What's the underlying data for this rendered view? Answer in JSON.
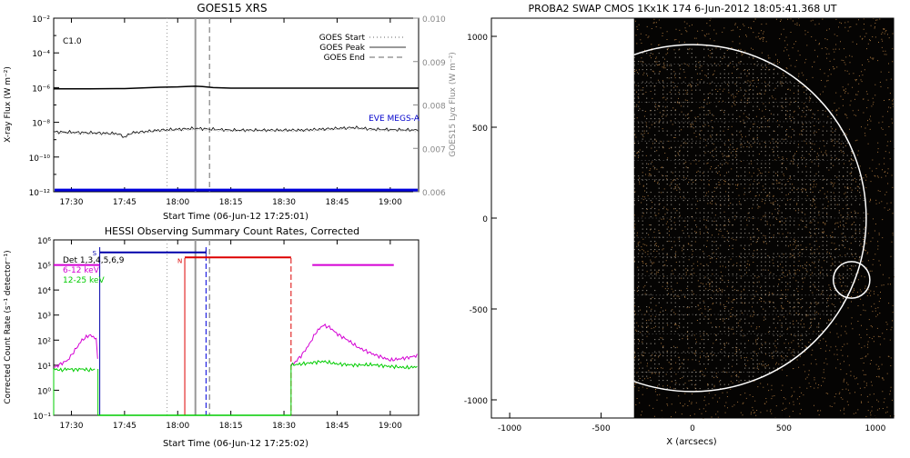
{
  "chart_data": [
    {
      "type": "line",
      "title": "GOES15 XRS",
      "xlabel": "Start Time (06-Jun-12 17:25:01)",
      "ylabel": "X-ray Flux (W m⁻²)",
      "ylabel2": "GOES15 Lyα Flux (W m⁻²)",
      "annotation": "C1.0",
      "xrange_minutes": [
        0,
        103
      ],
      "x_tick_labels": [
        "17:30",
        "17:45",
        "18:00",
        "18:15",
        "18:30",
        "18:45",
        "19:00"
      ],
      "x_tick_minutes": [
        5,
        20,
        35,
        50,
        65,
        80,
        95
      ],
      "ylim_log10": [
        -12,
        -2
      ],
      "y_ticks_log10": [
        -2,
        -4,
        -6,
        -8,
        -10,
        -12
      ],
      "y2lim": [
        0.006,
        0.01
      ],
      "y2_ticks": [
        "0.006",
        "0.007",
        "0.008",
        "0.009",
        "0.010"
      ],
      "y2_tick_values": [
        0.006,
        0.007,
        0.008,
        0.009,
        0.01
      ],
      "legend": [
        {
          "name": "GOES Start",
          "style": "dotted"
        },
        {
          "name": "GOES Peak",
          "style": "solid"
        },
        {
          "name": "GOES End",
          "style": "dashed"
        }
      ],
      "series_label": "EVE MEGS-A",
      "event_lines_minutes": {
        "start": 32,
        "peak": 40,
        "end": 44
      },
      "long_channel": {
        "x": [
          0,
          10,
          20,
          25,
          30,
          35,
          38,
          40,
          42,
          45,
          50,
          55,
          60,
          70,
          80,
          90,
          103
        ],
        "log10_flux": [
          -6.07,
          -6.07,
          -6.06,
          -6.02,
          -5.98,
          -5.96,
          -5.93,
          -5.92,
          -5.94,
          -6.0,
          -6.03,
          -6.03,
          -6.03,
          -6.03,
          -6.03,
          -6.03,
          -6.03
        ]
      },
      "short_channel": {
        "x": [
          0,
          10,
          18,
          20,
          22,
          25,
          30,
          35,
          40,
          45,
          50,
          60,
          70,
          80,
          85,
          90,
          103
        ],
        "log10_flux": [
          -8.55,
          -8.6,
          -8.65,
          -8.85,
          -8.6,
          -8.55,
          -8.45,
          -8.4,
          -8.35,
          -8.4,
          -8.45,
          -8.45,
          -8.45,
          -8.35,
          -8.3,
          -8.4,
          -8.45
        ]
      },
      "baseline_log10": -11.9
    },
    {
      "type": "line",
      "title": "HESSI Observing Summary Count Rates, Corrected",
      "xlabel": "Start Time (06-Jun-12 17:25:02)",
      "ylabel": "Corrected Count Rate (s⁻¹ detector⁻¹)",
      "xrange_minutes": [
        0,
        103
      ],
      "x_tick_labels": [
        "17:30",
        "17:45",
        "18:00",
        "18:15",
        "18:30",
        "18:45",
        "19:00"
      ],
      "x_tick_minutes": [
        5,
        20,
        35,
        50,
        65,
        80,
        95
      ],
      "ylim_log10": [
        -1,
        6
      ],
      "y_tick_labels": [
        "10⁻¹",
        "10⁰",
        "10¹",
        "10²",
        "10³",
        "10⁴",
        "10⁵",
        "10⁶"
      ],
      "y_tick_values_log10": [
        -1,
        0,
        1,
        2,
        3,
        4,
        5,
        6
      ],
      "legend_text": [
        "Det 1,3,4,5,6,9",
        "6-12 keV",
        "12-25 keV"
      ],
      "legend_colors": [
        "#000000",
        "#d400d4",
        "#00cc00"
      ],
      "flag_labels": [
        "S",
        "N"
      ],
      "series": [
        {
          "name": "6-12 keV",
          "color": "#d400d4",
          "segments": [
            {
              "x": [
                0,
                4,
                6,
                8,
                9,
                10,
                11,
                12,
                12.5
              ],
              "log10": [
                0.9,
                1.2,
                1.6,
                2.0,
                2.1,
                2.2,
                2.15,
                2.05,
                1.0
              ]
            },
            {
              "x": [
                67,
                68,
                70,
                72,
                74,
                76,
                78,
                80,
                83,
                86,
                90,
                95,
                100,
                103
              ],
              "log10": [
                1.0,
                1.1,
                1.4,
                1.8,
                2.3,
                2.6,
                2.5,
                2.25,
                2.0,
                1.7,
                1.45,
                1.2,
                1.3,
                1.4
              ]
            }
          ]
        },
        {
          "name": "12-25 keV",
          "color": "#00cc00",
          "segments": [
            {
              "x": [
                0,
                2,
                4,
                6,
                8,
                10,
                12
              ],
              "log10": [
                0.85,
                0.8,
                0.85,
                0.82,
                0.85,
                0.8,
                0.85
              ]
            },
            {
              "x": [
                67,
                70,
                73,
                76,
                80,
                85,
                90,
                95,
                100,
                103
              ],
              "log10": [
                1.0,
                1.05,
                1.1,
                1.15,
                1.05,
                1.0,
                1.02,
                0.95,
                0.9,
                0.95
              ]
            }
          ]
        }
      ],
      "attenuator_state": {
        "x": [
          13,
          43
        ],
        "log10": 5.5,
        "color": "#0000aa"
      },
      "saa_flag": {
        "x": [
          37,
          67
        ],
        "log10": 5.3,
        "color": "#dd0000"
      },
      "post_level": {
        "x": [
          73,
          96
        ],
        "log10": 5.0,
        "color": "#d400d4"
      },
      "pre_level": {
        "x": [
          0,
          13
        ],
        "log10": 5.0,
        "color": "#d400d4"
      }
    },
    {
      "type": "scatter",
      "title": "PROBA2 SWAP CMOS 1Kx1K 174  6-Jun-2012 18:05:41.368 UT",
      "xlabel": "X (arcsecs)",
      "ylabel": "",
      "xlim": [
        -1100,
        1100
      ],
      "ylim": [
        -1100,
        1100
      ],
      "x_ticks": [
        -1000,
        -500,
        0,
        500,
        1000
      ],
      "y_ticks": [
        1000,
        500,
        0,
        -500,
        -1000
      ],
      "solar_limb_radius_arcsec": 950,
      "highlight_circle": {
        "x": 870,
        "y": -340,
        "r": 100
      },
      "image_left_edge_arcsec": -320
    }
  ]
}
